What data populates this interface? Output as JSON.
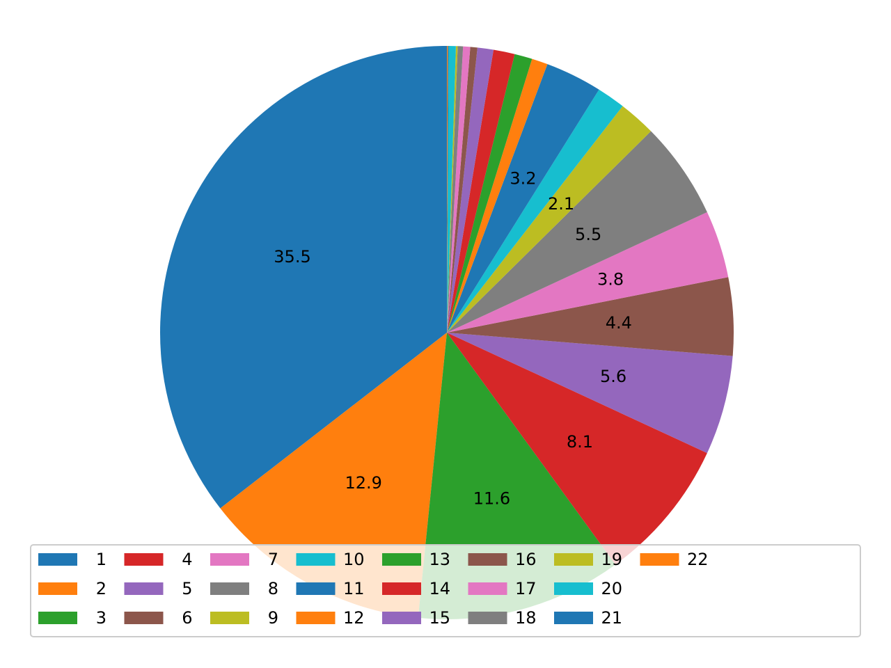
{
  "chart_data": {
    "type": "pie",
    "title": "",
    "categories": [
      "1",
      "2",
      "3",
      "4",
      "5",
      "6",
      "7",
      "8",
      "9",
      "10",
      "11",
      "12",
      "13",
      "14",
      "15",
      "16",
      "17",
      "18",
      "19",
      "20",
      "21",
      "22"
    ],
    "values": [
      35.5,
      12.9,
      11.6,
      8.1,
      5.6,
      4.4,
      3.8,
      5.5,
      2.1,
      1.6,
      3.2,
      0.9,
      1.0,
      1.2,
      0.9,
      0.4,
      0.4,
      0.3,
      0.1,
      0.4,
      0.05,
      0.05
    ],
    "labels": [
      "35.5",
      "12.9",
      "11.6",
      "8.1",
      "5.6",
      "4.4",
      "3.8",
      "5.5",
      "2.1",
      "",
      "3.2",
      "",
      "",
      "",
      "",
      "",
      "",
      "",
      "",
      "",
      "",
      ""
    ],
    "colors": [
      "#1f77b4",
      "#ff7f0e",
      "#2ca02c",
      "#d62728",
      "#9467bd",
      "#8c564b",
      "#e377c2",
      "#7f7f7f",
      "#bcbd22",
      "#17becf",
      "#1f77b4",
      "#ff7f0e",
      "#2ca02c",
      "#d62728",
      "#9467bd",
      "#8c564b",
      "#e377c2",
      "#7f7f7f",
      "#bcbd22",
      "#17becf",
      "#1f77b4",
      "#ff7f0e"
    ],
    "start_angle_deg": 90,
    "direction": "counterclockwise",
    "legend": {
      "placement": "lower-center",
      "columns": 9
    }
  }
}
